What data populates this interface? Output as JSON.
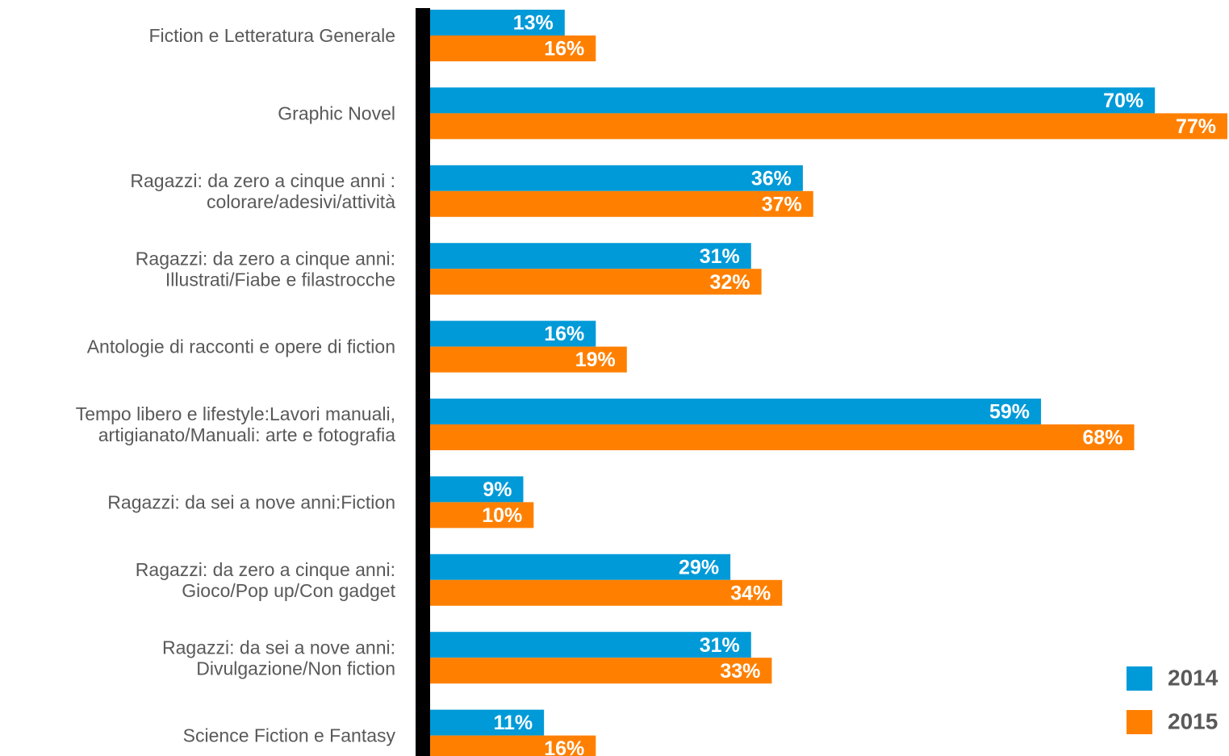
{
  "chart_data": {
    "type": "bar",
    "orientation": "horizontal",
    "categories": [
      [
        "Fiction e Letteratura Generale"
      ],
      [
        "Graphic Novel"
      ],
      [
        "Ragazzi: da zero a cinque anni :",
        "colorare/adesivi/attività"
      ],
      [
        "Ragazzi: da zero a cinque anni:",
        "Illustrati/Fiabe e filastrocche"
      ],
      [
        "Antologie di racconti e opere di fiction"
      ],
      [
        "Tempo libero e lifestyle:Lavori manuali,",
        "artigianato/Manuali: arte e fotografia"
      ],
      [
        "Ragazzi: da sei a nove anni:Fiction"
      ],
      [
        "Ragazzi: da zero a cinque anni:",
        "Gioco/Pop up/Con gadget"
      ],
      [
        "Ragazzi: da sei a nove anni:",
        "Divulgazione/Non fiction"
      ],
      [
        "Science Fiction e Fantasy"
      ]
    ],
    "series": [
      {
        "name": "2014",
        "color": "#009ad8",
        "values": [
          13,
          70,
          36,
          31,
          16,
          59,
          9,
          29,
          31,
          11
        ],
        "value_labels": [
          "13%",
          "70%",
          "36%",
          "31%",
          "16%",
          "59%",
          "9%",
          "29%",
          "31%",
          "11%"
        ]
      },
      {
        "name": "2015",
        "color": "#ff8000",
        "values": [
          16,
          77,
          37,
          32,
          19,
          68,
          10,
          34,
          33,
          16
        ],
        "value_labels": [
          "16%",
          "77%",
          "37%",
          "32%",
          "19%",
          "68%",
          "10%",
          "34%",
          "33%",
          "16%"
        ]
      }
    ],
    "legend": "bottom-right"
  }
}
